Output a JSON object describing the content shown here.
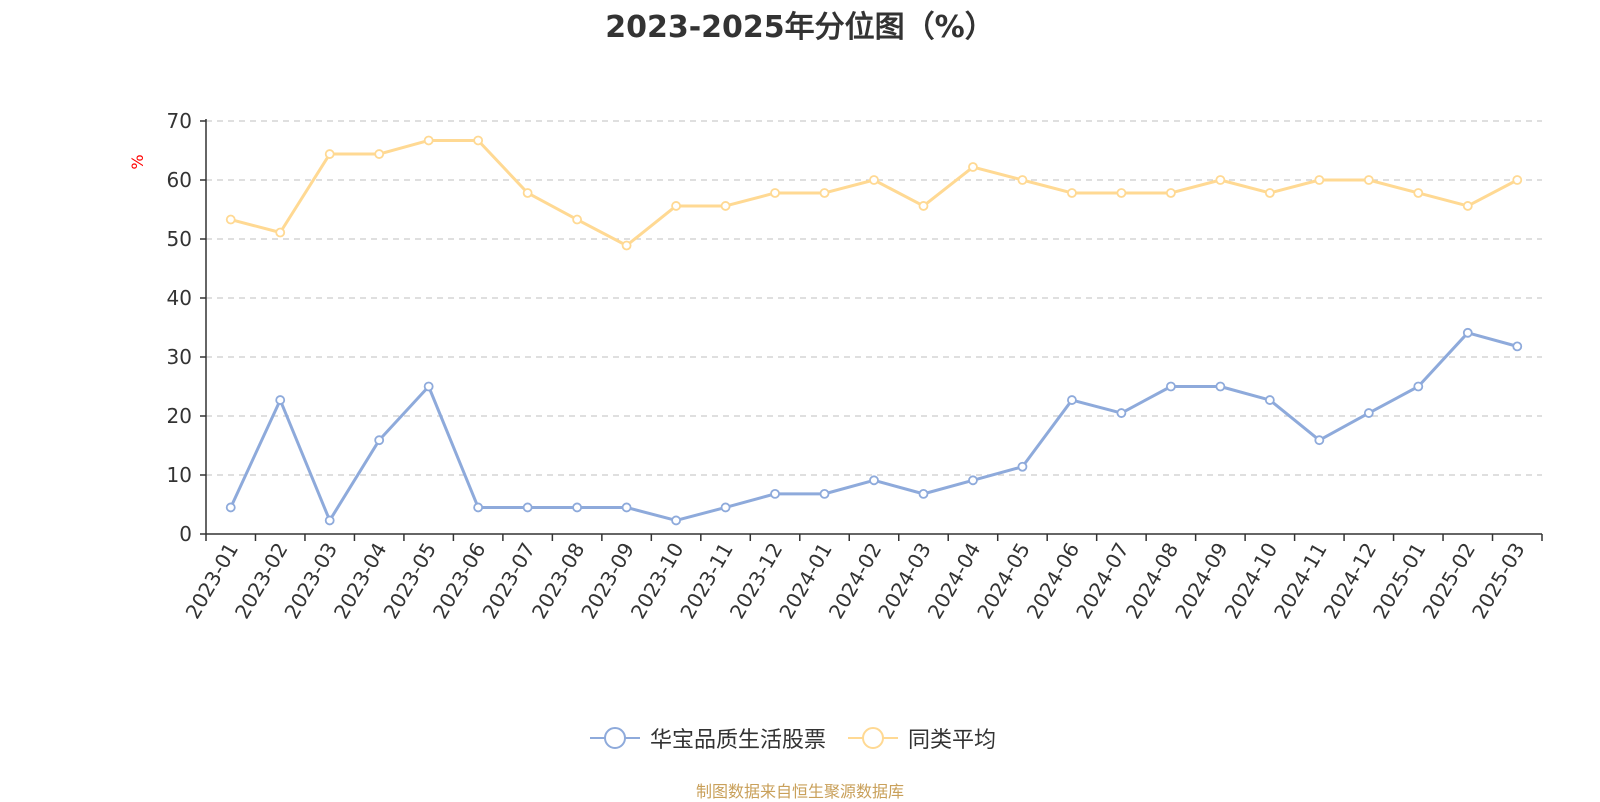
{
  "title": "2023-2025年分位图（%）",
  "source_note": "制图数据来自恒生聚源数据库",
  "chart_data": {
    "type": "line",
    "title": "2023-2025年分位图（%）",
    "ylabel": "%",
    "xlabel": "",
    "ylim": [
      0,
      70
    ],
    "yticks": [
      0,
      10,
      20,
      30,
      40,
      50,
      60,
      70
    ],
    "grid": true,
    "legend_position": "bottom",
    "categories": [
      "2023-01",
      "2023-02",
      "2023-03",
      "2023-04",
      "2023-05",
      "2023-06",
      "2023-07",
      "2023-08",
      "2023-09",
      "2023-10",
      "2023-11",
      "2023-12",
      "2024-01",
      "2024-02",
      "2024-03",
      "2024-04",
      "2024-05",
      "2024-06",
      "2024-07",
      "2024-08",
      "2024-09",
      "2024-10",
      "2024-11",
      "2024-12",
      "2025-01",
      "2025-02",
      "2025-03"
    ],
    "series": [
      {
        "name": "华宝品质生活股票",
        "color": "#8eaadb",
        "values": [
          4.5,
          22.7,
          2.3,
          15.9,
          25.0,
          4.5,
          4.5,
          4.5,
          4.5,
          2.3,
          4.5,
          6.8,
          6.8,
          9.1,
          6.8,
          9.1,
          11.4,
          22.7,
          20.5,
          25.0,
          25.0,
          22.7,
          15.9,
          20.5,
          25.0,
          34.1,
          31.8
        ]
      },
      {
        "name": "同类平均",
        "color": "#ffd993",
        "values": [
          53.3,
          51.1,
          64.4,
          64.4,
          66.7,
          66.7,
          57.8,
          53.3,
          48.9,
          55.6,
          55.6,
          57.8,
          57.8,
          60.0,
          55.6,
          62.2,
          60.0,
          57.8,
          57.8,
          57.8,
          60.0,
          57.8,
          60.0,
          60.0,
          57.8,
          55.6,
          60.0
        ]
      }
    ]
  }
}
